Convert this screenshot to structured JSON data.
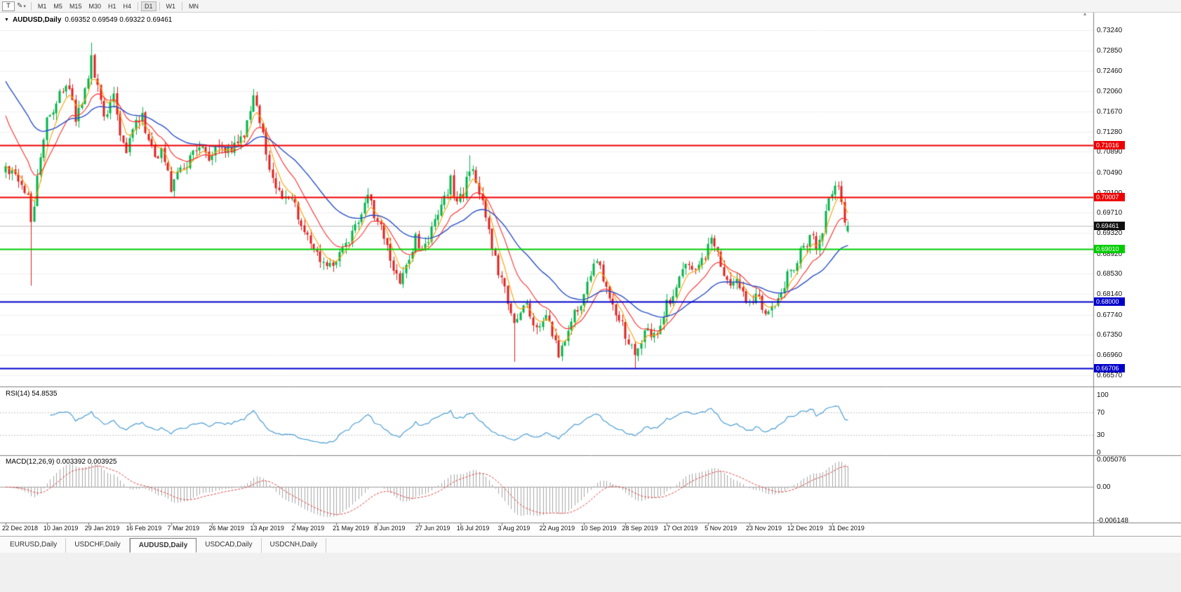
{
  "toolbar": {
    "chart_type_label": "T",
    "timeframe_groups": [
      [
        "M1",
        "M5",
        "M15",
        "M30",
        "H1",
        "H4"
      ],
      [
        "D1"
      ],
      [
        "W1"
      ],
      [
        "MN"
      ]
    ],
    "active_timeframe": "D1"
  },
  "chart": {
    "symbol_period": "AUDUSD,Daily",
    "ohlc_text": "0.69352 0.69549 0.69322 0.69461",
    "price_axis": [
      "0.73240",
      "0.72850",
      "0.72460",
      "0.72060",
      "0.71670",
      "0.71280",
      "0.70890",
      "0.70490",
      "0.70100",
      "0.69710",
      "0.69320",
      "0.68920",
      "0.68530",
      "0.68140",
      "0.67740",
      "0.67350",
      "0.66960",
      "0.66570"
    ],
    "levels": [
      {
        "label": "0.71016",
        "price": 0.71016,
        "color": "#ee0000",
        "width": 2
      },
      {
        "label": "0.70007",
        "price": 0.70007,
        "color": "#ee0000",
        "width": 2
      },
      {
        "label": "0.69010",
        "price": 0.6901,
        "color": "#00cc00",
        "width": 2
      },
      {
        "label": "0.68000",
        "price": 0.68,
        "color": "#0000c8",
        "width": 2
      },
      {
        "label": "0.66706",
        "price": 0.66706,
        "color": "#0000c8",
        "width": 2
      }
    ],
    "current_badge": {
      "label": "0.69461",
      "price": 0.69461,
      "color": "#101010"
    }
  },
  "rsi": {
    "label": "RSI(14) 54.8535",
    "axis_labels": [
      "100",
      "70",
      "30",
      "0"
    ]
  },
  "macd": {
    "label": "MACD(12,26,9) 0.003392 0.003925",
    "axis_labels": [
      "0.005076",
      "0.00",
      "-0.006148"
    ]
  },
  "date_axis": [
    "22 Dec 2018",
    "10 Jan 2019",
    "29 Jan 2019",
    "16 Feb 2019",
    "7 Mar 2019",
    "26 Mar 2019",
    "13 Apr 2019",
    "2 May 2019",
    "21 May 2019",
    "8 Jun 2019",
    "27 Jun 2019",
    "16 Jul 2019",
    "3 Aug 2019",
    "22 Aug 2019",
    "10 Sep 2019",
    "28 Sep 2019",
    "17 Oct 2019",
    "5 Nov 2019",
    "23 Nov 2019",
    "12 Dec 2019",
    "31 Dec 2019"
  ],
  "tabs": {
    "labels": [
      "EURUSD,Daily",
      "USDCHF,Daily",
      "AUDUSD,Daily",
      "USDCAD,Daily",
      "USDCNH,Daily"
    ],
    "active_index": 2
  },
  "chart_data": {
    "type": "candlestick",
    "symbol": "AUDUSD",
    "timeframe": "Daily",
    "visible_range": {
      "price_min": 0.6657,
      "price_max": 0.7324,
      "first_date": "22 Dec 2018",
      "last_date": "31 Dec 2019"
    },
    "num_candles": 266,
    "bars_per_label": 13,
    "noise_seed": 12345,
    "noise_amp": 0.0012,
    "wick_amp": 0.0014,
    "bull_color": "#00b446",
    "bear_color": "#e02020",
    "last_candle": {
      "open": 0.69352,
      "high": 0.69549,
      "low": 0.69322,
      "close": 0.69461
    },
    "price_path_anchors": [
      [
        0,
        0.705
      ],
      [
        4,
        0.7032
      ],
      [
        7,
        0.7
      ],
      [
        8,
        0.695
      ],
      [
        10,
        0.704
      ],
      [
        13,
        0.715
      ],
      [
        17,
        0.7195
      ],
      [
        20,
        0.7215
      ],
      [
        22,
        0.7145
      ],
      [
        25,
        0.72
      ],
      [
        27,
        0.7268
      ],
      [
        28,
        0.723
      ],
      [
        31,
        0.716
      ],
      [
        34,
        0.7195
      ],
      [
        36,
        0.713
      ],
      [
        38,
        0.7095
      ],
      [
        40,
        0.713
      ],
      [
        43,
        0.7158
      ],
      [
        45,
        0.711
      ],
      [
        47,
        0.7072
      ],
      [
        49,
        0.7098
      ],
      [
        52,
        0.7022
      ],
      [
        55,
        0.7048
      ],
      [
        58,
        0.7078
      ],
      [
        61,
        0.7098
      ],
      [
        64,
        0.7082
      ],
      [
        67,
        0.7108
      ],
      [
        70,
        0.7088
      ],
      [
        73,
        0.7108
      ],
      [
        76,
        0.7138
      ],
      [
        78,
        0.7188
      ],
      [
        80,
        0.7155
      ],
      [
        82,
        0.7095
      ],
      [
        84,
        0.703
      ],
      [
        87,
        0.6992
      ],
      [
        90,
        0.7002
      ],
      [
        93,
        0.6952
      ],
      [
        96,
        0.6912
      ],
      [
        99,
        0.6882
      ],
      [
        102,
        0.6868
      ],
      [
        105,
        0.6898
      ],
      [
        108,
        0.692
      ],
      [
        111,
        0.695
      ],
      [
        114,
        0.6995
      ],
      [
        116,
        0.6972
      ],
      [
        118,
        0.694
      ],
      [
        121,
        0.6882
      ],
      [
        124,
        0.6836
      ],
      [
        126,
        0.6862
      ],
      [
        129,
        0.692
      ],
      [
        132,
        0.6902
      ],
      [
        135,
        0.6958
      ],
      [
        138,
        0.7
      ],
      [
        140,
        0.7032
      ],
      [
        142,
        0.6992
      ],
      [
        144,
        0.7012
      ],
      [
        146,
        0.7058
      ],
      [
        148,
        0.704
      ],
      [
        150,
        0.6992
      ],
      [
        152,
        0.6932
      ],
      [
        154,
        0.6882
      ],
      [
        156,
        0.6842
      ],
      [
        158,
        0.6792
      ],
      [
        160,
        0.6752
      ],
      [
        162,
        0.6772
      ],
      [
        164,
        0.6792
      ],
      [
        166,
        0.6762
      ],
      [
        168,
        0.6742
      ],
      [
        170,
        0.6772
      ],
      [
        172,
        0.6732
      ],
      [
        174,
        0.6702
      ],
      [
        176,
        0.6722
      ],
      [
        178,
        0.6762
      ],
      [
        180,
        0.6792
      ],
      [
        182,
        0.6812
      ],
      [
        184,
        0.6852
      ],
      [
        186,
        0.6876
      ],
      [
        188,
        0.6842
      ],
      [
        190,
        0.6802
      ],
      [
        192,
        0.6772
      ],
      [
        194,
        0.6752
      ],
      [
        196,
        0.6722
      ],
      [
        198,
        0.6692
      ],
      [
        200,
        0.6722
      ],
      [
        202,
        0.6752
      ],
      [
        204,
        0.6732
      ],
      [
        206,
        0.6762
      ],
      [
        208,
        0.6792
      ],
      [
        211,
        0.6832
      ],
      [
        214,
        0.6862
      ],
      [
        217,
        0.6852
      ],
      [
        220,
        0.6892
      ],
      [
        222,
        0.6922
      ],
      [
        224,
        0.6892
      ],
      [
        226,
        0.6852
      ],
      [
        228,
        0.6822
      ],
      [
        230,
        0.6842
      ],
      [
        232,
        0.6812
      ],
      [
        234,
        0.6792
      ],
      [
        236,
        0.6812
      ],
      [
        238,
        0.6792
      ],
      [
        240,
        0.6772
      ],
      [
        242,
        0.6802
      ],
      [
        244,
        0.6822
      ],
      [
        246,
        0.685
      ],
      [
        248,
        0.6868
      ],
      [
        250,
        0.6892
      ],
      [
        253,
        0.6928
      ],
      [
        255,
        0.6906
      ],
      [
        257,
        0.694
      ],
      [
        259,
        0.699
      ],
      [
        261,
        0.7022
      ],
      [
        263,
        0.7
      ],
      [
        264,
        0.695
      ],
      [
        265,
        0.6946
      ]
    ],
    "special_candles": [
      {
        "index": 8,
        "low": 0.683
      },
      {
        "index": 27,
        "high": 0.73
      },
      {
        "index": 102,
        "low": 0.6865
      },
      {
        "index": 124,
        "low": 0.6832
      },
      {
        "index": 146,
        "high": 0.7082
      },
      {
        "index": 160,
        "low": 0.6683
      },
      {
        "index": 174,
        "low": 0.669
      },
      {
        "index": 198,
        "low": 0.66706
      },
      {
        "index": 222,
        "high": 0.6929
      },
      {
        "index": 261,
        "high": 0.7032
      }
    ],
    "current_price_line": {
      "price": 0.69461,
      "color": "#bdbdbd"
    },
    "moving_averages": [
      {
        "period": 5,
        "color": "#ffa000",
        "seed": null
      },
      {
        "period": 13,
        "color": "#ff2a2a",
        "seed": 0.7175
      },
      {
        "period": 34,
        "color": "#2b50c8",
        "seed": 0.7235
      }
    ],
    "indicators": {
      "rsi": {
        "period": 14,
        "current": 54.8535,
        "levels": [
          100,
          70,
          30,
          0
        ],
        "dashed_levels": [
          70,
          30
        ],
        "color": "#4d9fd6"
      },
      "macd": {
        "fast": 12,
        "slow": 26,
        "signal": 9,
        "macd_value": 0.003392,
        "signal_value": 0.003925,
        "axis_max": 0.005076,
        "axis_min": -0.006148,
        "histogram_color": "#a6a6a6",
        "signal_color": "#e04040"
      }
    }
  }
}
